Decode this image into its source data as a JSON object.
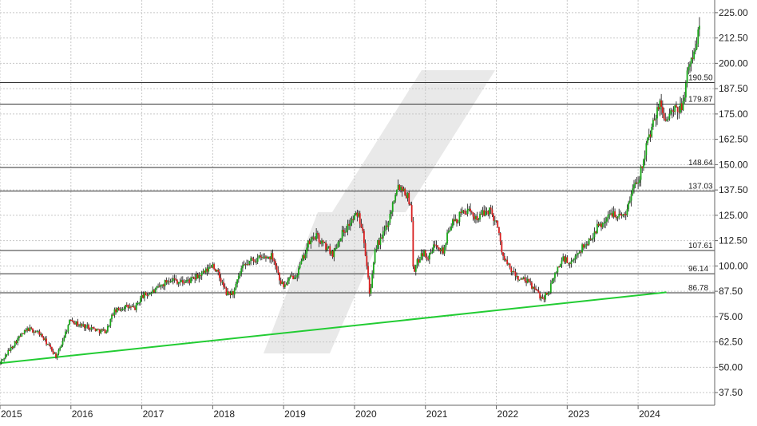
{
  "chart_data": {
    "type": "candlestick",
    "title": "",
    "xlabel": "",
    "ylabel": "",
    "ylim": [
      31.25,
      231.25
    ],
    "xlim": [
      2015.0,
      2025.08
    ],
    "grid": true,
    "x_ticks": [
      "2015",
      "2016",
      "2017",
      "2018",
      "2019",
      "2020",
      "2021",
      "2022",
      "2023",
      "2024"
    ],
    "y_ticks": [
      "37.50",
      "50.00",
      "62.50",
      "75.00",
      "87.50",
      "100.00",
      "112.50",
      "125.00",
      "137.50",
      "150.00",
      "162.50",
      "175.00",
      "187.50",
      "200.00",
      "212.50",
      "225.00"
    ],
    "horizontal_levels": [
      {
        "label": "190.50",
        "value": 190.5
      },
      {
        "label": "179.87",
        "value": 179.87
      },
      {
        "label": "148.64",
        "value": 148.64
      },
      {
        "label": "137.03",
        "value": 137.03
      },
      {
        "label": "107.61",
        "value": 107.61
      },
      {
        "label": "96.14",
        "value": 96.14
      },
      {
        "label": "86.78",
        "value": 86.78
      }
    ],
    "trendline": {
      "x": [
        2015.0,
        2024.4
      ],
      "y": [
        52.0,
        87.0
      ],
      "color": "#22cc33"
    },
    "price_path": [
      [
        2015.0,
        52
      ],
      [
        2015.1,
        57
      ],
      [
        2015.25,
        64
      ],
      [
        2015.4,
        69
      ],
      [
        2015.55,
        67
      ],
      [
        2015.7,
        60
      ],
      [
        2015.8,
        55
      ],
      [
        2015.9,
        65
      ],
      [
        2016.0,
        74
      ],
      [
        2016.1,
        71
      ],
      [
        2016.25,
        70
      ],
      [
        2016.4,
        68
      ],
      [
        2016.5,
        68
      ],
      [
        2016.6,
        77
      ],
      [
        2016.75,
        80
      ],
      [
        2016.9,
        79
      ],
      [
        2017.0,
        85
      ],
      [
        2017.2,
        88
      ],
      [
        2017.4,
        94
      ],
      [
        2017.55,
        92
      ],
      [
        2017.7,
        93
      ],
      [
        2017.9,
        97
      ],
      [
        2018.0,
        101
      ],
      [
        2018.1,
        94
      ],
      [
        2018.2,
        86
      ],
      [
        2018.3,
        87
      ],
      [
        2018.4,
        98
      ],
      [
        2018.55,
        103
      ],
      [
        2018.7,
        104
      ],
      [
        2018.85,
        105
      ],
      [
        2018.95,
        93
      ],
      [
        2019.0,
        90
      ],
      [
        2019.1,
        94
      ],
      [
        2019.2,
        97
      ],
      [
        2019.35,
        111
      ],
      [
        2019.45,
        115
      ],
      [
        2019.55,
        111
      ],
      [
        2019.7,
        106
      ],
      [
        2019.8,
        115
      ],
      [
        2019.95,
        122
      ],
      [
        2020.05,
        126
      ],
      [
        2020.12,
        118
      ],
      [
        2020.22,
        85
      ],
      [
        2020.3,
        110
      ],
      [
        2020.38,
        113
      ],
      [
        2020.5,
        125
      ],
      [
        2020.6,
        140
      ],
      [
        2020.7,
        138
      ],
      [
        2020.8,
        130
      ],
      [
        2020.83,
        97
      ],
      [
        2020.95,
        107
      ],
      [
        2021.05,
        104
      ],
      [
        2021.15,
        112
      ],
      [
        2021.25,
        107
      ],
      [
        2021.35,
        120
      ],
      [
        2021.45,
        123
      ],
      [
        2021.55,
        128
      ],
      [
        2021.65,
        125
      ],
      [
        2021.75,
        124
      ],
      [
        2021.9,
        128
      ],
      [
        2022.0,
        122
      ],
      [
        2022.1,
        104
      ],
      [
        2022.2,
        98
      ],
      [
        2022.3,
        94
      ],
      [
        2022.45,
        92
      ],
      [
        2022.55,
        88
      ],
      [
        2022.65,
        84
      ],
      [
        2022.75,
        88
      ],
      [
        2022.85,
        98
      ],
      [
        2022.95,
        104
      ],
      [
        2023.05,
        100
      ],
      [
        2023.15,
        107
      ],
      [
        2023.3,
        112
      ],
      [
        2023.4,
        118
      ],
      [
        2023.55,
        123
      ],
      [
        2023.65,
        127
      ],
      [
        2023.75,
        124
      ],
      [
        2023.85,
        128
      ],
      [
        2023.95,
        142
      ],
      [
        2024.02,
        144
      ],
      [
        2024.1,
        158
      ],
      [
        2024.2,
        168
      ],
      [
        2024.3,
        180
      ],
      [
        2024.4,
        172
      ],
      [
        2024.5,
        177
      ],
      [
        2024.55,
        175
      ],
      [
        2024.62,
        180
      ],
      [
        2024.7,
        195
      ],
      [
        2024.78,
        205
      ],
      [
        2024.85,
        215
      ],
      [
        2024.88,
        223
      ]
    ],
    "colors": {
      "up": "#1aa81a",
      "down": "#d81e1e",
      "levels": "#333333",
      "watermark": "#e8e8e8",
      "grid": "#c8c8c8"
    }
  }
}
